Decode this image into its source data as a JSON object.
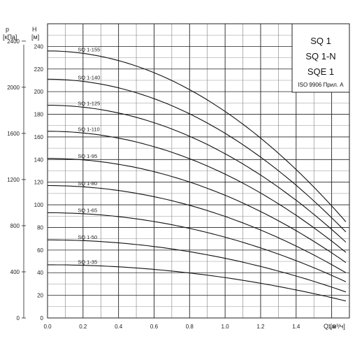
{
  "chart_data": {
    "type": "line",
    "title_lines": [
      "SQ 1",
      "SQ 1-N",
      "SQE 1"
    ],
    "note": "ISO 9906 Прил. A",
    "left_axis": {
      "symbol": "p",
      "unit": "[кПа]",
      "ticks": [
        "0",
        "400",
        "800",
        "1200",
        "1600",
        "2000",
        "2400"
      ]
    },
    "right_axis": {
      "symbol": "H",
      "unit": "[м]",
      "ticks": [
        "0",
        "20",
        "40",
        "60",
        "80",
        "100",
        "120",
        "140",
        "160",
        "180",
        "200",
        "220",
        "240"
      ]
    },
    "x_axis": {
      "label": "Q [м³/ч]",
      "ticks": [
        "0.0",
        "0.2",
        "0.4",
        "0.6",
        "0.8",
        "1.0",
        "1.2",
        "1.4",
        "1.6"
      ]
    },
    "xlim": [
      0,
      1.7
    ],
    "ylim": [
      0,
      240
    ],
    "grid": true,
    "series": [
      {
        "name": "SQ 1-155",
        "shutoff_head": 236,
        "end_q": 1.68,
        "end_head": 85
      },
      {
        "name": "SQ 1-140",
        "shutoff_head": 211,
        "end_q": 1.68,
        "end_head": 76
      },
      {
        "name": "SQ 1-125",
        "shutoff_head": 188,
        "end_q": 1.68,
        "end_head": 67
      },
      {
        "name": "SQ 1-110",
        "shutoff_head": 165,
        "end_q": 1.68,
        "end_head": 58
      },
      {
        "name": "SQ 1-95",
        "shutoff_head": 141,
        "end_q": 1.68,
        "end_head": 49
      },
      {
        "name": "SQ 1-80",
        "shutoff_head": 117,
        "end_q": 1.68,
        "end_head": 40
      },
      {
        "name": "SQ 1-65",
        "shutoff_head": 93,
        "end_q": 1.68,
        "end_head": 32
      },
      {
        "name": "SQ 1-50",
        "shutoff_head": 69,
        "end_q": 1.68,
        "end_head": 23
      },
      {
        "name": "SQ 1-35",
        "shutoff_head": 47,
        "end_q": 1.68,
        "end_head": 15
      }
    ]
  }
}
